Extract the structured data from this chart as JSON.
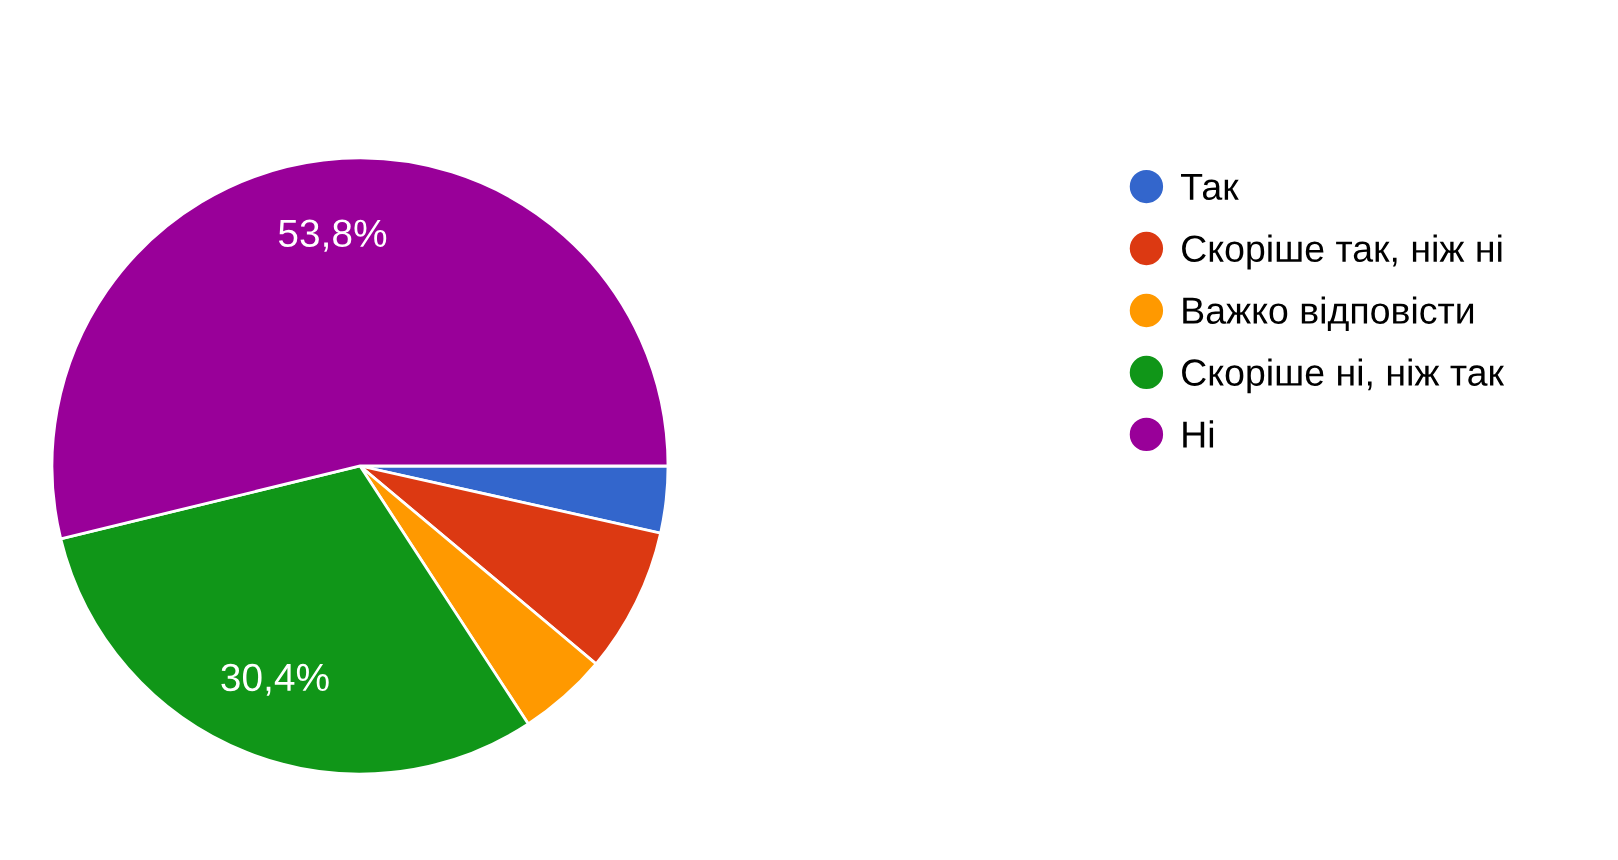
{
  "chart_data": {
    "type": "pie",
    "categories": [
      "Так",
      "Скоріше так, ніж ні",
      "Важко відповісти",
      "Скоріше ні, ніж так",
      "Ні"
    ],
    "values": [
      3.5,
      7.6,
      4.7,
      30.4,
      53.8
    ],
    "value_labels": [
      null,
      null,
      null,
      "30,4%",
      "53,8%"
    ],
    "colors": [
      "#3366cc",
      "#dc3912",
      "#ff9900",
      "#109618",
      "#990099"
    ],
    "legend": "right"
  }
}
